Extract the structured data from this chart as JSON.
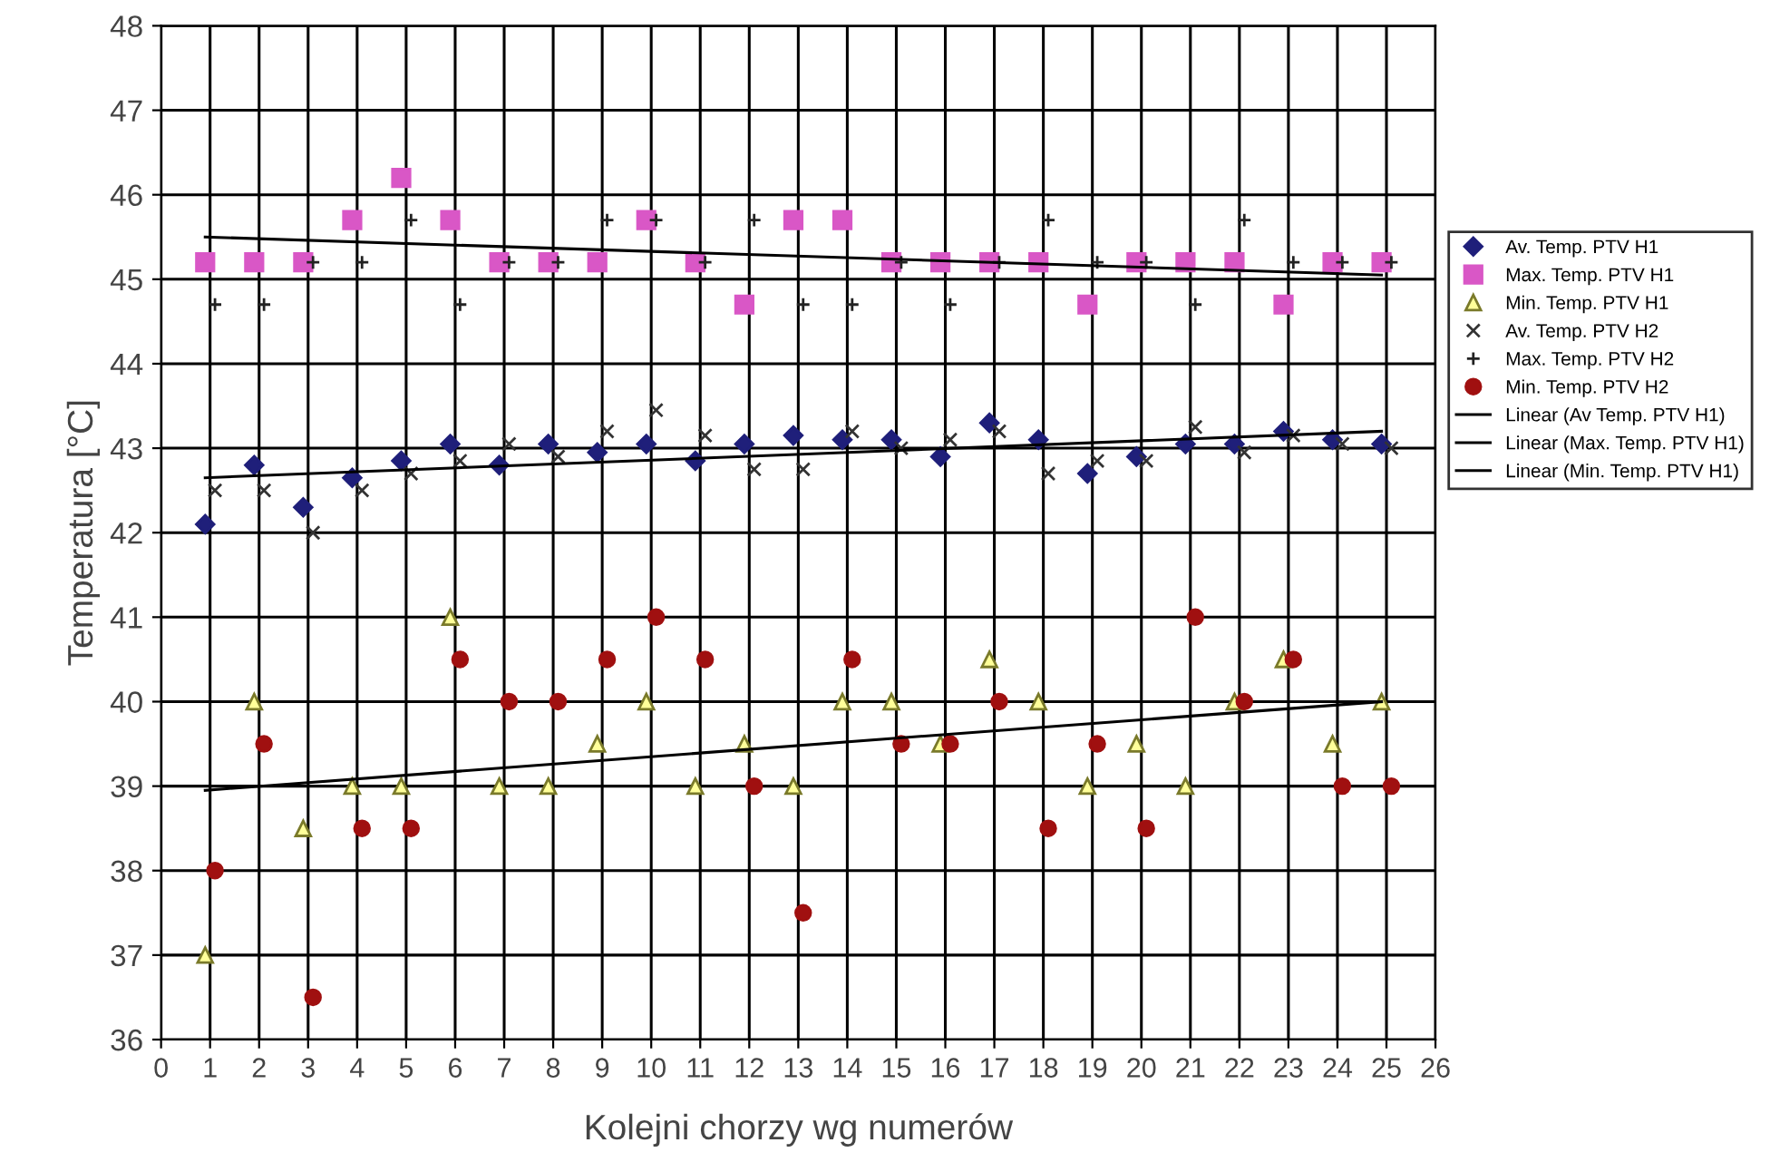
{
  "chart_data": {
    "type": "scatter",
    "xlabel": "Kolejni chorzy wg numerów",
    "ylabel": "Temperatura [°C]",
    "xlim": [
      0,
      26
    ],
    "xticks": [
      0,
      1,
      2,
      3,
      4,
      5,
      6,
      7,
      8,
      9,
      10,
      11,
      12,
      13,
      14,
      15,
      16,
      17,
      18,
      19,
      20,
      21,
      22,
      23,
      24,
      25,
      26
    ],
    "ylim": [
      36,
      48
    ],
    "yticks": [
      36,
      37,
      38,
      39,
      40,
      41,
      42,
      43,
      44,
      45,
      46,
      47,
      48
    ],
    "grid": true,
    "legend": "right",
    "series": [
      {
        "name": "Av. Temp. PTV H1",
        "color": "#1f1f7a",
        "marker": "diamond",
        "x": [
          0.9,
          1.9,
          2.9,
          3.9,
          4.9,
          5.9,
          6.9,
          7.9,
          8.9,
          9.9,
          10.9,
          11.9,
          12.9,
          13.9,
          14.9,
          15.9,
          16.9,
          17.9,
          18.9,
          19.9,
          20.9,
          21.9,
          22.9,
          23.9,
          24.9
        ],
        "values": [
          42.1,
          42.8,
          42.3,
          42.65,
          42.85,
          43.05,
          42.8,
          43.05,
          42.95,
          43.05,
          42.85,
          43.05,
          43.15,
          43.1,
          43.1,
          42.9,
          43.3,
          43.1,
          42.7,
          42.9,
          43.05,
          43.05,
          43.2,
          43.1,
          43.05
        ]
      },
      {
        "name": "Max. Temp. PTV H1",
        "color": "#d957c6",
        "marker": "square",
        "x": [
          0.9,
          1.9,
          2.9,
          3.9,
          4.9,
          5.9,
          6.9,
          7.9,
          8.9,
          9.9,
          10.9,
          11.9,
          12.9,
          13.9,
          14.9,
          15.9,
          16.9,
          17.9,
          18.9,
          19.9,
          20.9,
          21.9,
          22.9,
          23.9,
          24.9
        ],
        "values": [
          45.2,
          45.2,
          45.2,
          45.7,
          46.2,
          45.7,
          45.2,
          45.2,
          45.2,
          45.7,
          45.2,
          44.7,
          45.7,
          45.7,
          45.2,
          45.2,
          45.2,
          45.2,
          44.7,
          45.2,
          45.2,
          45.2,
          44.7,
          45.2,
          45.2
        ]
      },
      {
        "name": "Min. Temp. PTV H1",
        "color": "#7a7a2a",
        "marker": "triangle",
        "x": [
          0.9,
          1.9,
          2.9,
          3.9,
          4.9,
          5.9,
          6.9,
          7.9,
          8.9,
          9.9,
          10.9,
          11.9,
          12.9,
          13.9,
          14.9,
          15.9,
          16.9,
          17.9,
          18.9,
          19.9,
          20.9,
          21.9,
          22.9,
          23.9,
          24.9
        ],
        "values": [
          37.0,
          40.0,
          38.5,
          39.0,
          39.0,
          41.0,
          39.0,
          39.0,
          39.5,
          40.0,
          39.0,
          39.5,
          39.0,
          40.0,
          40.0,
          39.5,
          40.5,
          40.0,
          39.0,
          39.5,
          39.0,
          40.0,
          40.5,
          39.5,
          40.0
        ]
      },
      {
        "name": "Av. Temp. PTV H2",
        "color": "#333333",
        "marker": "cross",
        "x": [
          1.1,
          2.1,
          3.1,
          4.1,
          5.1,
          6.1,
          7.1,
          8.1,
          9.1,
          10.1,
          11.1,
          12.1,
          13.1,
          14.1,
          15.1,
          16.1,
          17.1,
          18.1,
          19.1,
          20.1,
          21.1,
          22.1,
          23.1,
          24.1,
          25.1
        ],
        "values": [
          42.5,
          42.5,
          42.0,
          42.5,
          42.7,
          42.85,
          43.05,
          42.9,
          43.2,
          43.45,
          43.15,
          42.75,
          42.75,
          43.2,
          43.0,
          43.1,
          43.2,
          42.7,
          42.85,
          42.85,
          43.25,
          42.95,
          43.15,
          43.05,
          43.0
        ]
      },
      {
        "name": "Max. Temp. PTV H2",
        "color": "#222222",
        "marker": "plus",
        "x": [
          1.1,
          2.1,
          3.1,
          4.1,
          5.1,
          6.1,
          7.1,
          8.1,
          9.1,
          10.1,
          11.1,
          12.1,
          13.1,
          14.1,
          15.1,
          16.1,
          17.1,
          18.1,
          19.1,
          20.1,
          21.1,
          22.1,
          23.1,
          24.1,
          25.1
        ],
        "values": [
          44.7,
          44.7,
          45.2,
          45.2,
          45.7,
          44.7,
          45.2,
          45.2,
          45.7,
          45.7,
          45.2,
          45.7,
          44.7,
          44.7,
          45.2,
          44.7,
          45.2,
          45.7,
          45.2,
          45.2,
          44.7,
          45.7,
          45.2,
          45.2,
          45.2
        ]
      },
      {
        "name": "Min. Temp. PTV H2",
        "color": "#a01010",
        "marker": "circle",
        "x": [
          1.1,
          2.1,
          3.1,
          4.1,
          5.1,
          6.1,
          7.1,
          8.1,
          9.1,
          10.1,
          11.1,
          12.1,
          13.1,
          14.1,
          15.1,
          16.1,
          17.1,
          18.1,
          19.1,
          20.1,
          21.1,
          22.1,
          23.1,
          24.1,
          25.1
        ],
        "values": [
          38.0,
          39.5,
          36.5,
          38.5,
          38.5,
          40.5,
          40.0,
          40.0,
          40.5,
          41.0,
          40.5,
          39.0,
          37.5,
          40.5,
          39.5,
          39.5,
          40.0,
          38.5,
          39.5,
          38.5,
          41.0,
          40.0,
          40.5,
          39.0,
          39.0
        ]
      },
      {
        "name": "Linear (Av Temp. PTV H1)",
        "type": "line",
        "color": "#000000",
        "x": [
          0.9,
          24.9
        ],
        "values": [
          42.65,
          43.2
        ]
      },
      {
        "name": "Linear (Max. Temp. PTV H1)",
        "type": "line",
        "color": "#000000",
        "x": [
          0.9,
          24.9
        ],
        "values": [
          45.5,
          45.05
        ]
      },
      {
        "name": "Linear (Min. Temp. PTV H1)",
        "type": "line",
        "color": "#000000",
        "x": [
          0.9,
          24.9
        ],
        "values": [
          38.95,
          40.0
        ]
      }
    ]
  }
}
